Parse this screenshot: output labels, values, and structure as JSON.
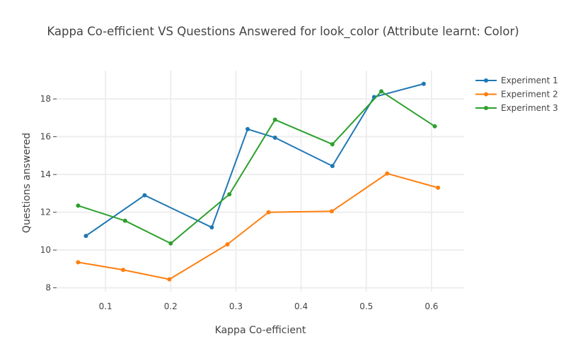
{
  "chart_data": {
    "type": "line",
    "title": "Kappa Co-efficient VS Questions Answered for look_color (Attribute learnt: Color)",
    "xlabel": "Kappa Co-efficient",
    "ylabel": "Questions answered",
    "xlim": [
      0.025,
      0.65
    ],
    "ylim": [
      7.8,
      19.5
    ],
    "xticks": [
      0.1,
      0.2,
      0.3,
      0.4,
      0.5,
      0.6
    ],
    "xtick_labels": [
      "0.1",
      "0.2",
      "0.3",
      "0.4",
      "0.5",
      "0.6"
    ],
    "yticks": [
      8,
      10,
      12,
      14,
      16,
      18
    ],
    "ytick_labels": [
      "8",
      "10",
      "12",
      "14",
      "16",
      "18"
    ],
    "grid": true,
    "legend_position": "top-right",
    "series": [
      {
        "name": "Experiment 1",
        "color": "#1f77b4",
        "x": [
          0.07,
          0.16,
          0.263,
          0.318,
          0.36,
          0.448,
          0.512,
          0.588
        ],
        "y": [
          10.75,
          12.9,
          11.2,
          16.4,
          15.95,
          14.45,
          18.1,
          18.8
        ]
      },
      {
        "name": "Experiment 2",
        "color": "#ff7f0e",
        "x": [
          0.058,
          0.127,
          0.198,
          0.287,
          0.35,
          0.447,
          0.532,
          0.61
        ],
        "y": [
          9.35,
          8.95,
          8.45,
          10.3,
          12.0,
          12.05,
          14.05,
          13.3
        ]
      },
      {
        "name": "Experiment 3",
        "color": "#2ca02c",
        "x": [
          0.058,
          0.13,
          0.2,
          0.29,
          0.36,
          0.448,
          0.523,
          0.605
        ],
        "y": [
          12.35,
          11.55,
          10.35,
          12.95,
          16.9,
          15.6,
          18.4,
          16.55
        ]
      }
    ]
  }
}
